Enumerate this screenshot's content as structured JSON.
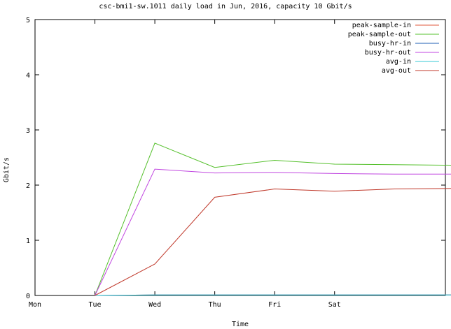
{
  "chart_data": {
    "type": "line",
    "title": "csc-bmi1-sw.1011 daily load in Jun, 2016, capacity 10 Gbit/s",
    "xlabel": "Time",
    "ylabel": "Gbit/s",
    "categories": [
      "Mon",
      "Tue",
      "Wed",
      "Thu",
      "Fri",
      "Sat"
    ],
    "x": [
      1,
      2,
      3,
      4,
      5,
      6,
      7
    ],
    "xlim": [
      0,
      6.85
    ],
    "ylim": [
      0,
      5
    ],
    "yticks": [
      0,
      1,
      2,
      3,
      4,
      5
    ],
    "grid": false,
    "legend_position": "top-right",
    "series": [
      {
        "name": "peak-sample-in",
        "color": "#e05a3c",
        "values": [
          0.0,
          0.01,
          0.01,
          0.01,
          0.01,
          0.01,
          0.01
        ]
      },
      {
        "name": "peak-sample-out",
        "color": "#55c02c",
        "values": [
          0.0,
          2.76,
          2.32,
          2.45,
          2.38,
          2.37,
          2.36
        ]
      },
      {
        "name": "busy-hr-in",
        "color": "#1f5fb4",
        "values": [
          0.0,
          0.01,
          0.01,
          0.01,
          0.01,
          0.01,
          0.01
        ]
      },
      {
        "name": "busy-hr-out",
        "color": "#c046e0",
        "values": [
          0.0,
          2.29,
          2.22,
          2.23,
          2.21,
          2.2,
          2.2
        ]
      },
      {
        "name": "avg-in",
        "color": "#35c9d4",
        "values": [
          0.0,
          0.01,
          0.01,
          0.01,
          0.01,
          0.01,
          0.01
        ]
      },
      {
        "name": "avg-out",
        "color": "#c0392b",
        "values": [
          0.0,
          0.57,
          1.78,
          1.93,
          1.89,
          1.93,
          1.94
        ]
      }
    ]
  }
}
